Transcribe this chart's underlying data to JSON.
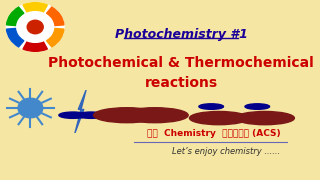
{
  "bg_color": "#f5e6a3",
  "title_text": "Photochemistry #1",
  "title_color": "#1a0099",
  "subtitle_line1": "Photochemical & Thermochemical",
  "subtitle_line2": "reactions",
  "subtitle_color": "#cc0000",
  "bottom_text1": "आओ  Chemistry  सीखें (ACS)",
  "bottom_text2": "Let’s enjoy chemistry ......",
  "bottom_text1_color": "#cc0000",
  "bottom_text2_color": "#333333",
  "sun_color": "#4488cc",
  "bolt_color": "#3366bb",
  "dark_red": "#7a1818",
  "dark_blue": "#00008b",
  "line_color": "#6666bb",
  "arc_colors": [
    "#ff6600",
    "#ffcc00",
    "#00aa00",
    "#0055cc",
    "#cc0000",
    "#ff9900"
  ]
}
